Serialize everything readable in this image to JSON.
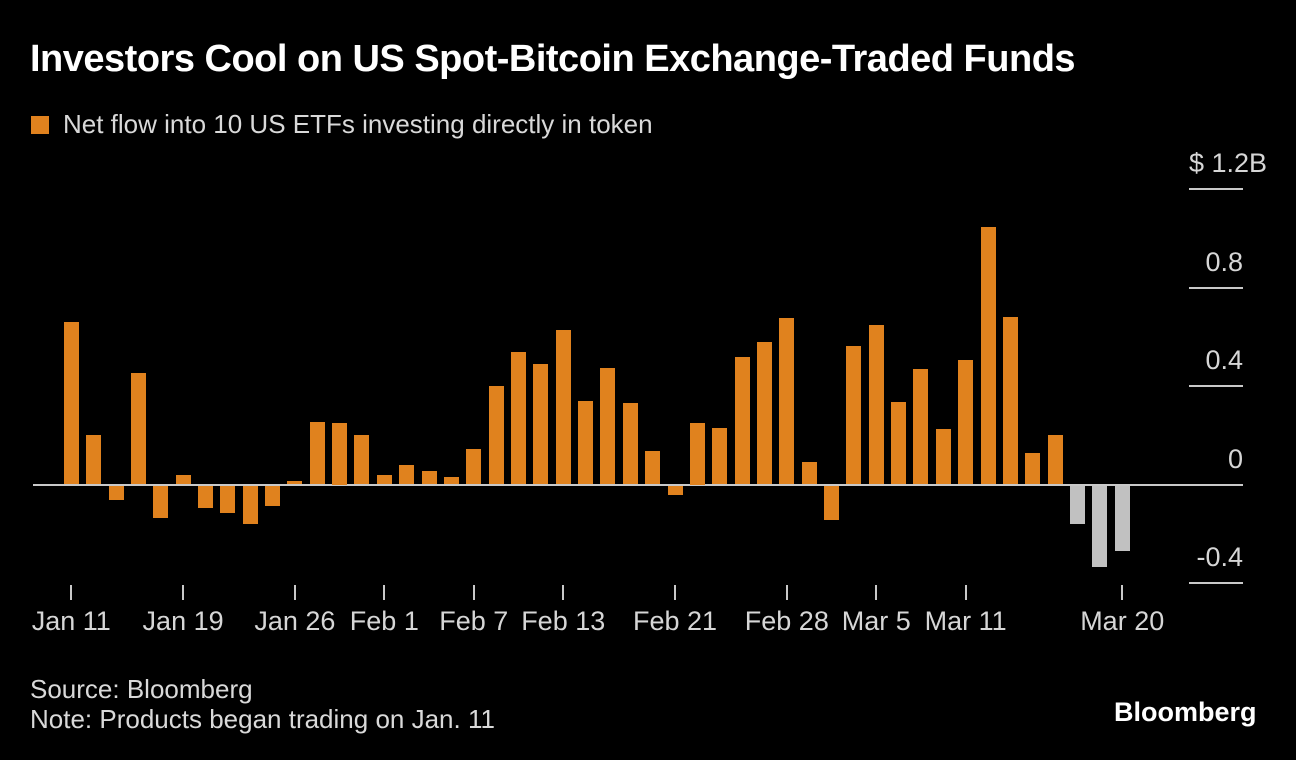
{
  "colors": {
    "inflow_bar": "#E0821E",
    "recent_outflow_bar": "#C1C1C1",
    "axis_line": "#C9C9C9",
    "tick_text": "#D6D6D6",
    "title_text": "#FFFFFF",
    "background": "#000000"
  },
  "footer": {
    "source": "Source: Bloomberg",
    "note": "Note: Products began trading on Jan. 11",
    "brand": "Bloomberg"
  },
  "chart_data": {
    "type": "bar",
    "title": "Investors Cool on US Spot-Bitcoin Exchange-Traded Funds",
    "legend": "Net flow into 10 US ETFs investing directly in token",
    "unit": "billions of US dollars",
    "grid": false,
    "legend_position": "top-left",
    "ylim": [
      -0.45,
      1.25
    ],
    "y_ticks": [
      {
        "label": "$ 1.2B",
        "value": 1.2
      },
      {
        "label": "0.8",
        "value": 0.8
      },
      {
        "label": "0.4",
        "value": 0.4
      },
      {
        "label": "0",
        "value": 0
      },
      {
        "label": "-0.4",
        "value": -0.4
      }
    ],
    "x_ticks": [
      {
        "index": 0,
        "label": "Jan 11"
      },
      {
        "index": 5,
        "label": "Jan 19"
      },
      {
        "index": 10,
        "label": "Jan 26"
      },
      {
        "index": 14,
        "label": "Feb 1"
      },
      {
        "index": 18,
        "label": "Feb 7"
      },
      {
        "index": 22,
        "label": "Feb 13"
      },
      {
        "index": 27,
        "label": "Feb 21"
      },
      {
        "index": 32,
        "label": "Feb 28"
      },
      {
        "index": 36,
        "label": "Mar 5"
      },
      {
        "index": 40,
        "label": "Mar 11"
      },
      {
        "index": 47,
        "label": "Mar 20"
      }
    ],
    "bars": [
      {
        "date": "Jan 11",
        "value": 0.66,
        "color": "orange"
      },
      {
        "date": "Jan 12",
        "value": 0.2,
        "color": "orange"
      },
      {
        "date": "Jan 16",
        "value": -0.055,
        "color": "orange"
      },
      {
        "date": "Jan 17",
        "value": 0.455,
        "color": "orange"
      },
      {
        "date": "Jan 18",
        "value": -0.13,
        "color": "orange"
      },
      {
        "date": "Jan 19",
        "value": 0.04,
        "color": "orange"
      },
      {
        "date": "Jan 22",
        "value": -0.09,
        "color": "orange"
      },
      {
        "date": "Jan 23",
        "value": -0.11,
        "color": "orange"
      },
      {
        "date": "Jan 24",
        "value": -0.155,
        "color": "orange"
      },
      {
        "date": "Jan 25",
        "value": -0.08,
        "color": "orange"
      },
      {
        "date": "Jan 26",
        "value": 0.015,
        "color": "orange"
      },
      {
        "date": "Jan 29",
        "value": 0.255,
        "color": "orange"
      },
      {
        "date": "Jan 30",
        "value": 0.25,
        "color": "orange"
      },
      {
        "date": "Jan 31",
        "value": 0.2,
        "color": "orange"
      },
      {
        "date": "Feb 1",
        "value": 0.04,
        "color": "orange"
      },
      {
        "date": "Feb 2",
        "value": 0.08,
        "color": "orange"
      },
      {
        "date": "Feb 5",
        "value": 0.055,
        "color": "orange"
      },
      {
        "date": "Feb 6",
        "value": 0.03,
        "color": "orange"
      },
      {
        "date": "Feb 7",
        "value": 0.145,
        "color": "orange"
      },
      {
        "date": "Feb 8",
        "value": 0.4,
        "color": "orange"
      },
      {
        "date": "Feb 9",
        "value": 0.54,
        "color": "orange"
      },
      {
        "date": "Feb 12",
        "value": 0.49,
        "color": "orange"
      },
      {
        "date": "Feb 13",
        "value": 0.63,
        "color": "orange"
      },
      {
        "date": "Feb 14",
        "value": 0.34,
        "color": "orange"
      },
      {
        "date": "Feb 15",
        "value": 0.475,
        "color": "orange"
      },
      {
        "date": "Feb 16",
        "value": 0.33,
        "color": "orange"
      },
      {
        "date": "Feb 20",
        "value": 0.135,
        "color": "orange"
      },
      {
        "date": "Feb 21",
        "value": -0.035,
        "color": "orange"
      },
      {
        "date": "Feb 22",
        "value": 0.25,
        "color": "orange"
      },
      {
        "date": "Feb 23",
        "value": 0.23,
        "color": "orange"
      },
      {
        "date": "Feb 26",
        "value": 0.52,
        "color": "orange"
      },
      {
        "date": "Feb 27",
        "value": 0.58,
        "color": "orange"
      },
      {
        "date": "Feb 28",
        "value": 0.675,
        "color": "orange"
      },
      {
        "date": "Feb 29",
        "value": 0.09,
        "color": "orange"
      },
      {
        "date": "Mar 1",
        "value": -0.14,
        "color": "orange"
      },
      {
        "date": "Mar 4",
        "value": 0.565,
        "color": "orange"
      },
      {
        "date": "Mar 5",
        "value": 0.65,
        "color": "orange"
      },
      {
        "date": "Mar 6",
        "value": 0.335,
        "color": "orange"
      },
      {
        "date": "Mar 7",
        "value": 0.47,
        "color": "orange"
      },
      {
        "date": "Mar 8",
        "value": 0.225,
        "color": "orange"
      },
      {
        "date": "Mar 11",
        "value": 0.505,
        "color": "orange"
      },
      {
        "date": "Mar 12",
        "value": 1.045,
        "color": "orange"
      },
      {
        "date": "Mar 13",
        "value": 0.68,
        "color": "orange"
      },
      {
        "date": "Mar 14",
        "value": 0.13,
        "color": "orange"
      },
      {
        "date": "Mar 15",
        "value": 0.2,
        "color": "orange"
      },
      {
        "date": "Mar 18",
        "value": -0.155,
        "color": "gray"
      },
      {
        "date": "Mar 19",
        "value": -0.33,
        "color": "gray"
      },
      {
        "date": "Mar 20",
        "value": -0.265,
        "color": "gray"
      }
    ]
  }
}
